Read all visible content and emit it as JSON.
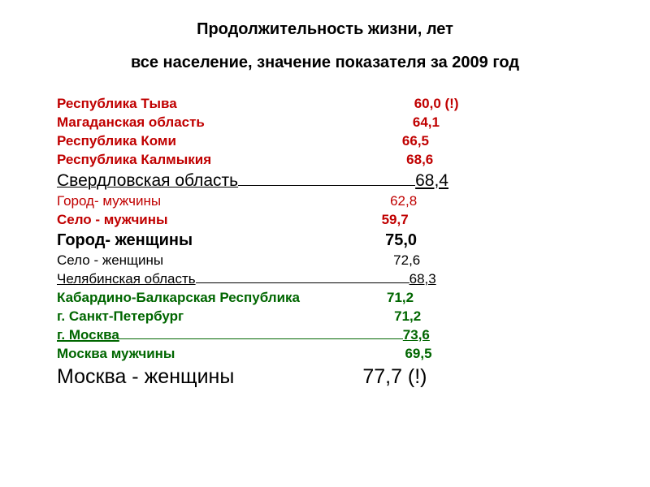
{
  "title1": "Продолжительность жизни, лет",
  "title2": "все население,  значение показателя за 2009 год",
  "rows": [
    {
      "label": "Республика Тыва",
      "value": "60,0 (!)",
      "color": "#c00000",
      "weight": "bold",
      "size": 17,
      "underline": false,
      "spacerWidth": 292,
      "valPad": 0
    },
    {
      "label": "Магаданская область",
      "value": "64,1",
      "color": "#c00000",
      "weight": "bold",
      "size": 17,
      "underline": false,
      "spacerWidth": 256,
      "valPad": 0
    },
    {
      "label": "Республика Коми",
      "value": "66,5",
      "color": "#c00000",
      "weight": "bold",
      "size": 17,
      "underline": false,
      "spacerWidth": 278,
      "valPad": 0
    },
    {
      "label": "Республика Калмыкия",
      "value": "68,6",
      "color": "#c00000",
      "weight": "bold",
      "size": 17,
      "underline": false,
      "spacerWidth": 240,
      "valPad": 0
    },
    {
      "label": "Свердловская область",
      "value": "68,4",
      "color": "#000000",
      "weight": "normal",
      "size": 21,
      "underline": true,
      "spacerWidth": 218,
      "valPad": 0
    },
    {
      "label": " Город- мужчины",
      "value": "62,8",
      "color": "#c00000",
      "weight": "normal",
      "size": 17,
      "underline": false,
      "spacerWidth": 282,
      "valPad": 0
    },
    {
      "label": " Село - мужчины",
      "value": "59,7",
      "color": "#c00000",
      "weight": "bold",
      "size": 17,
      "underline": false,
      "spacerWidth": 263,
      "valPad": 0
    },
    {
      "label": "Город- женщины",
      "value": "75,0",
      "color": "#000000",
      "weight": "bold",
      "size": 20,
      "underline": false,
      "spacerWidth": 237,
      "valPad": 0
    },
    {
      "label": " Село - женщины",
      "value": "72,6",
      "color": "#000000",
      "weight": "normal",
      "size": 17,
      "underline": false,
      "spacerWidth": 283,
      "valPad": 0
    },
    {
      "label": "Челябинская область",
      "value": "68,3",
      "color": "#000000",
      "weight": "normal",
      "size": 17,
      "underline": true,
      "spacerWidth": 263,
      "valPad": 0
    },
    {
      "label": "Кабардино-Балкарская Республика",
      "value": "71,2",
      "color": "#006600",
      "weight": "bold",
      "size": 17,
      "underline": false,
      "spacerWidth": 107,
      "valPad": 0
    },
    {
      "label": "г. Санкт-Петербург",
      "value": "71,2",
      "color": "#006600",
      "weight": "bold",
      "size": 17,
      "underline": false,
      "spacerWidth": 259,
      "valPad": 0
    },
    {
      "label": "г. Москва",
      "value": "73,6",
      "color": "#006600",
      "weight": "bold",
      "size": 17,
      "underline": true,
      "spacerWidth": 349,
      "valPad": 0
    },
    {
      "label": "Москва мужчины",
      "value": "69,5",
      "color": "#006600",
      "weight": "bold",
      "size": 17,
      "underline": false,
      "spacerWidth": 283,
      "valPad": 0
    },
    {
      "label": " Москва - женщины",
      "value": "77,7 (!)",
      "color": "#000000",
      "weight": "normal",
      "size": 25,
      "underline": false,
      "spacerWidth": 158,
      "valPad": 0
    }
  ]
}
